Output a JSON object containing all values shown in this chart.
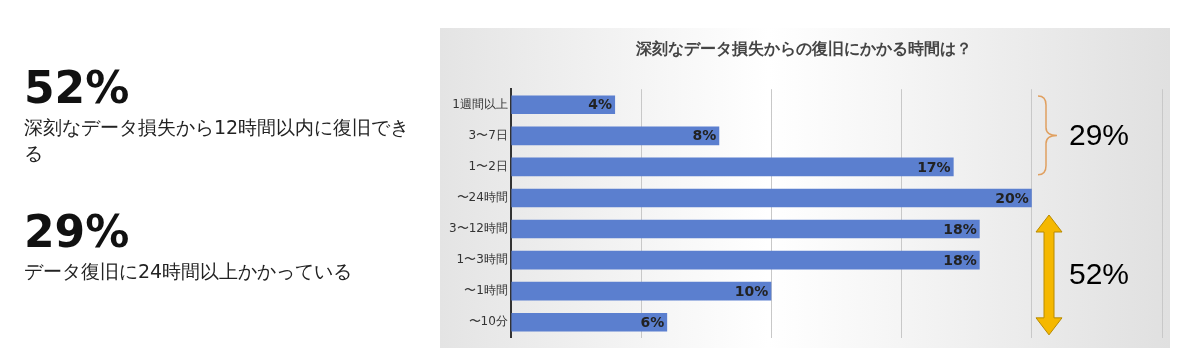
{
  "chart_data": [
    {
      "type": "other",
      "annotations": [
        "52%",
        "深刻なデータ損失から12時間以内に復旧できる",
        "29%",
        "データ復旧に24時間以上かかっている"
      ]
    },
    {
      "type": "bar",
      "orientation": "horizontal",
      "title": "深刻なデータ損失からの復旧にかかる時間は？",
      "categories": [
        "1週間以上",
        "3〜7日",
        "1〜2日",
        "〜24時間",
        "3〜12時間",
        "1〜3時間",
        "〜1時間",
        "〜10分"
      ],
      "values": [
        4,
        8,
        17,
        20,
        18,
        18,
        10,
        6
      ],
      "value_labels": [
        "4%",
        "8%",
        "17%",
        "20%",
        "18%",
        "18%",
        "10%",
        "6%"
      ],
      "color": "#5b7fcf",
      "xlim": [
        0,
        25
      ],
      "xticks": [
        {
          "value": 0,
          "label": null
        },
        {
          "value": 5,
          "label": null
        },
        {
          "value": 10,
          "label": null
        },
        {
          "value": 15,
          "label": null
        },
        {
          "value": 20,
          "label": null
        },
        {
          "value": 25,
          "label": null
        }
      ],
      "grid": "x",
      "tick_labels": "y",
      "legend": false,
      "annotations": [
        "29%",
        "52%"
      ]
    }
  ]
}
